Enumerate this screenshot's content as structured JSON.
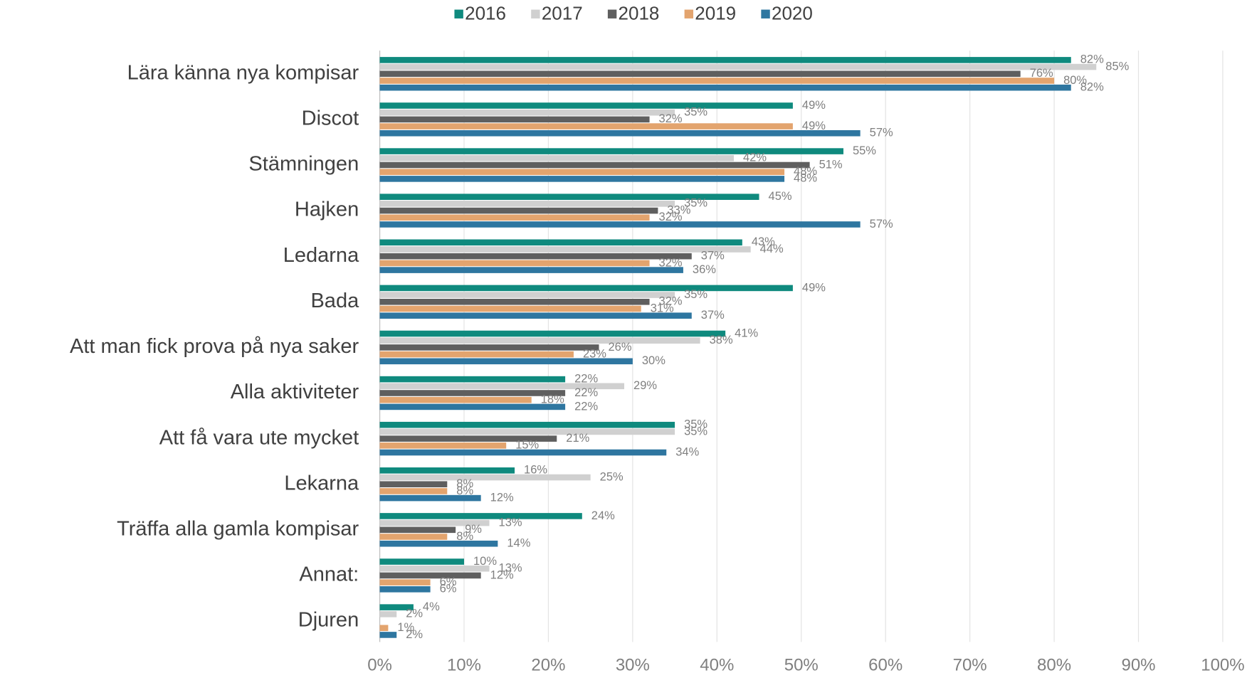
{
  "chart_data": {
    "type": "hbar",
    "categories": [
      "Lära känna nya kompisar",
      "Discot",
      "Stämningen",
      "Hajken",
      "Ledarna",
      "Bada",
      "Att man fick prova på nya saker",
      "Alla aktiviteter",
      "Att få vara ute mycket",
      "Lekarna",
      "Träffa alla gamla kompisar",
      "Annat:",
      "Djuren"
    ],
    "series": [
      {
        "name": "2016",
        "color": "#0f8a7e",
        "values": [
          82,
          49,
          55,
          45,
          43,
          49,
          41,
          22,
          35,
          16,
          24,
          10,
          4
        ],
        "value_labels": [
          "82%",
          "49%",
          "55%",
          "45%",
          "43%",
          "49%",
          "41%",
          "22%",
          "35%",
          "16%",
          "24%",
          "10%",
          "4%"
        ]
      },
      {
        "name": "2017",
        "color": "#d0d0d0",
        "values": [
          85,
          35,
          42,
          35,
          44,
          35,
          38,
          29,
          35,
          25,
          13,
          13,
          2
        ],
        "value_labels": [
          "85%",
          "35%",
          "42%",
          "35%",
          "44%",
          "35%",
          "38%",
          "29%",
          "35%",
          "25%",
          "13%",
          "13%",
          "2%"
        ]
      },
      {
        "name": "2018",
        "color": "#5f5f5f",
        "values": [
          76,
          32,
          51,
          33,
          37,
          32,
          26,
          22,
          21,
          8,
          9,
          12,
          null
        ],
        "value_labels": [
          "76%",
          "32%",
          "51%",
          "33%",
          "37%",
          "32%",
          "26%",
          "22%",
          "21%",
          "8%",
          "9%",
          "12%",
          null
        ]
      },
      {
        "name": "2019",
        "color": "#e3a46e",
        "values": [
          80,
          49,
          48,
          32,
          32,
          31,
          23,
          18,
          15,
          8,
          8,
          6,
          1
        ],
        "value_labels": [
          "80%",
          "49%",
          "48%",
          "32%",
          "32%",
          "31%",
          "23%",
          "18%",
          "15%",
          "8%",
          "8%",
          "6%",
          "1%"
        ]
      },
      {
        "name": "2020",
        "color": "#2e76a0",
        "values": [
          82,
          57,
          48,
          57,
          36,
          37,
          30,
          22,
          34,
          12,
          14,
          6,
          2
        ],
        "value_labels": [
          "82%",
          "57%",
          "48%",
          "57%",
          "36%",
          "37%",
          "30%",
          "22%",
          "34%",
          "12%",
          "14%",
          "6%",
          "2%"
        ]
      }
    ],
    "xlim": [
      0,
      100
    ],
    "xticks": [
      {
        "value": 0,
        "label": "0%"
      },
      {
        "value": 10,
        "label": "10%"
      },
      {
        "value": 20,
        "label": "20%"
      },
      {
        "value": 30,
        "label": "30%"
      },
      {
        "value": 40,
        "label": "40%"
      },
      {
        "value": 50,
        "label": "50%"
      },
      {
        "value": 60,
        "label": "60%"
      },
      {
        "value": 70,
        "label": "70%"
      },
      {
        "value": 80,
        "label": "80%"
      },
      {
        "value": 90,
        "label": "90%"
      },
      {
        "value": 100,
        "label": "100%"
      }
    ],
    "grid": true,
    "legend": "top"
  }
}
